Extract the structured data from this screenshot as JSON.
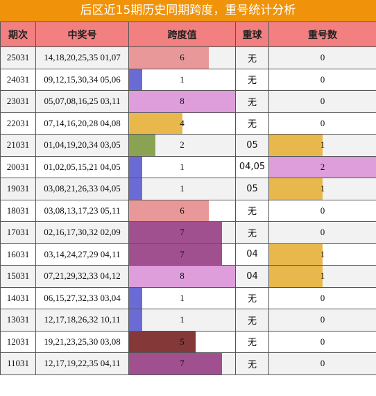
{
  "title": "后区近15期历史同期跨度，重号统计分析",
  "headers": [
    "期次",
    "中奖号",
    "跨度值",
    "重球",
    "重号数"
  ],
  "max_span": 8,
  "max_repeat": 2,
  "rows": [
    {
      "period": "25031",
      "numbers": "14,18,20,25,35 01,07",
      "span": "6",
      "repeat_ball": "无",
      "repeat_count": "0"
    },
    {
      "period": "24031",
      "numbers": "09,12,15,30,34 05,06",
      "span": "1",
      "repeat_ball": "无",
      "repeat_count": "0"
    },
    {
      "period": "23031",
      "numbers": "05,07,08,16,25 03,11",
      "span": "8",
      "repeat_ball": "无",
      "repeat_count": "0"
    },
    {
      "period": "22031",
      "numbers": "07,14,16,20,28 04,08",
      "span": "4",
      "repeat_ball": "无",
      "repeat_count": "0"
    },
    {
      "period": "21031",
      "numbers": "01,04,19,20,34 03,05",
      "span": "2",
      "repeat_ball": "05",
      "repeat_count": "1"
    },
    {
      "period": "20031",
      "numbers": "01,02,05,15,21 04,05",
      "span": "1",
      "repeat_ball": "04,05",
      "repeat_count": "2"
    },
    {
      "period": "19031",
      "numbers": "03,08,21,26,33 04,05",
      "span": "1",
      "repeat_ball": "05",
      "repeat_count": "1"
    },
    {
      "period": "18031",
      "numbers": "03,08,13,17,23 05,11",
      "span": "6",
      "repeat_ball": "无",
      "repeat_count": "0"
    },
    {
      "period": "17031",
      "numbers": "02,16,17,30,32 02,09",
      "span": "7",
      "repeat_ball": "无",
      "repeat_count": "0"
    },
    {
      "period": "16031",
      "numbers": "03,14,24,27,29 04,11",
      "span": "7",
      "repeat_ball": "04",
      "repeat_count": "1"
    },
    {
      "period": "15031",
      "numbers": "07,21,29,32,33 04,12",
      "span": "8",
      "repeat_ball": "04",
      "repeat_count": "1"
    },
    {
      "period": "14031",
      "numbers": "06,15,27,32,33 03,04",
      "span": "1",
      "repeat_ball": "无",
      "repeat_count": "0"
    },
    {
      "period": "13031",
      "numbers": "12,17,18,26,32 10,11",
      "span": "1",
      "repeat_ball": "无",
      "repeat_count": "0"
    },
    {
      "period": "12031",
      "numbers": "19,21,23,25,30 03,08",
      "span": "5",
      "repeat_ball": "无",
      "repeat_count": "0"
    },
    {
      "period": "11031",
      "numbers": "12,17,19,22,35 04,11",
      "span": "7",
      "repeat_ball": "无",
      "repeat_count": "0"
    }
  ],
  "colors": {
    "title_bg": "#f0930a",
    "header_bg": "#f28080",
    "span_1": "#6b6bd6",
    "span_2": "#8aa352",
    "span_4": "#e8b84d",
    "span_5": "#843838",
    "span_6": "#e89898",
    "span_7": "#a0508f",
    "span_8": "#dd9edb",
    "repeat_1": "#e8b84d",
    "repeat_2": "#dd9edb"
  }
}
